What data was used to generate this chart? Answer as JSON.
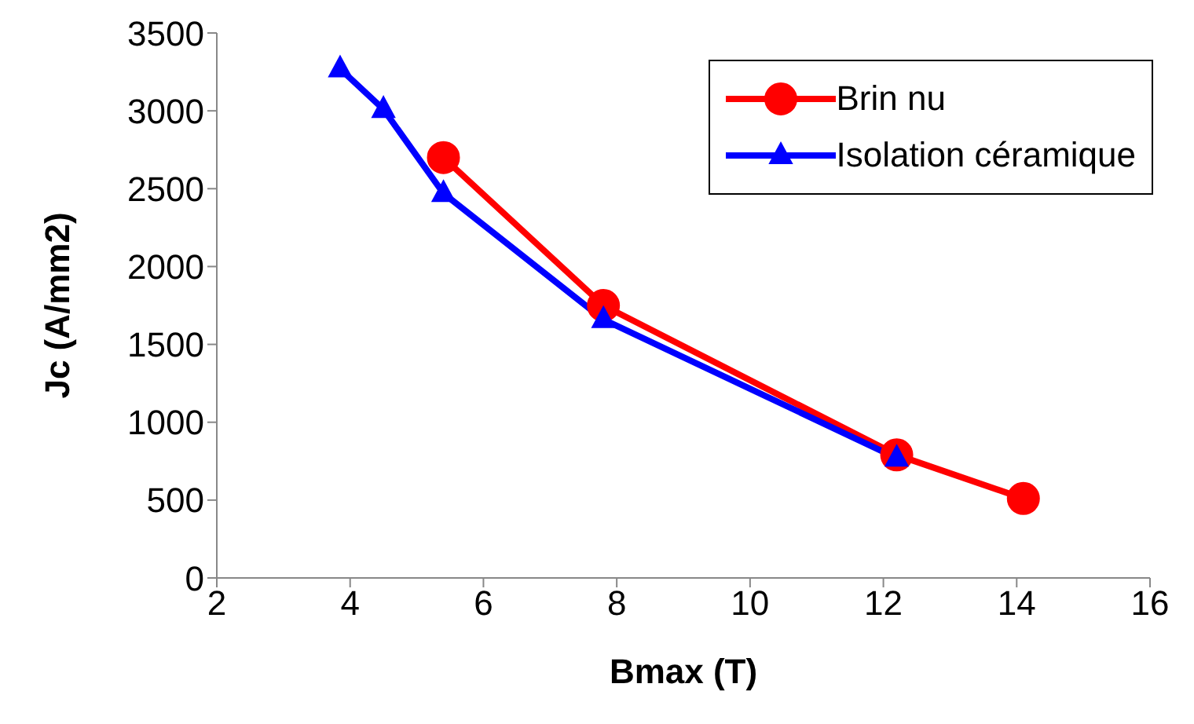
{
  "chart_data": {
    "type": "line",
    "xlabel": "Bmax (T)",
    "ylabel": "Jc (A/mm2)",
    "xlim": [
      2,
      16
    ],
    "xticks": [
      2,
      4,
      6,
      8,
      10,
      12,
      14,
      16
    ],
    "ylim": [
      0,
      3500
    ],
    "yticks": [
      0,
      500,
      1000,
      1500,
      2000,
      2500,
      3000,
      3500
    ],
    "grid": false,
    "legend": "top right",
    "series": [
      {
        "name": "Brin nu",
        "color": "#ff0000",
        "marker": "circle",
        "x": [
          5.4,
          7.8,
          12.2,
          14.1
        ],
        "values": [
          2700,
          1750,
          790,
          510
        ]
      },
      {
        "name": "Isolation céramique",
        "color": "#0000ff",
        "marker": "triangle",
        "x": [
          3.85,
          4.5,
          5.4,
          7.8,
          12.2
        ],
        "values": [
          3270,
          3010,
          2470,
          1660,
          770
        ]
      }
    ]
  }
}
